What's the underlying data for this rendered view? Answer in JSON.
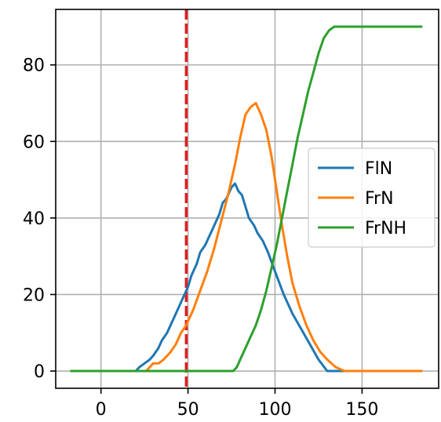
{
  "chart_data": {
    "type": "line",
    "title": "",
    "xlabel": "",
    "ylabel": "",
    "xlim": [
      -26,
      194
    ],
    "ylim": [
      -4.5,
      94.5
    ],
    "xticks": [
      0,
      50,
      100,
      150
    ],
    "yticks": [
      0,
      20,
      40,
      60,
      80
    ],
    "grid": true,
    "legend": {
      "placement": "center-right",
      "entries": [
        "FlN",
        "FrN",
        "FrNH"
      ]
    },
    "colors": {
      "FlN": "#1f77b4",
      "FrN": "#ff7f0e",
      "FrNH": "#2ca02c",
      "vline": "#e41a1c"
    },
    "vline": {
      "x": 49,
      "style": "dashed",
      "color": "#e41a1c"
    },
    "series": [
      {
        "name": "FlN",
        "x": [
          -17,
          20,
          22,
          25,
          28,
          30,
          33,
          35,
          38,
          40,
          43,
          45,
          48,
          50,
          52,
          55,
          57,
          60,
          62,
          65,
          68,
          70,
          72,
          75,
          77,
          79,
          81,
          83,
          85,
          88,
          90,
          93,
          96,
          100,
          105,
          110,
          115,
          120,
          125,
          130,
          140,
          184
        ],
        "y": [
          0,
          0,
          1,
          2,
          3,
          4,
          6,
          8,
          10,
          12,
          15,
          17,
          20,
          22,
          25,
          28,
          31,
          33,
          35,
          38,
          41,
          44,
          45,
          48,
          49,
          47,
          46,
          43,
          40,
          38,
          36,
          34,
          31,
          26,
          20,
          15,
          11,
          7,
          3,
          0,
          0,
          0
        ]
      },
      {
        "name": "FrN",
        "x": [
          -17,
          26,
          28,
          30,
          33,
          36,
          40,
          43,
          46,
          49,
          53,
          57,
          61,
          65,
          69,
          73,
          77,
          80,
          83,
          86,
          89,
          92,
          95,
          98,
          101,
          104,
          107,
          110,
          114,
          118,
          122,
          126,
          130,
          135,
          140,
          184
        ],
        "y": [
          0,
          0,
          1,
          2,
          2,
          3,
          5,
          7,
          10,
          12,
          16,
          21,
          26,
          32,
          39,
          46,
          54,
          61,
          67,
          69,
          70,
          67,
          63,
          56,
          47,
          38,
          30,
          23,
          17,
          12,
          8,
          5,
          3,
          1,
          0,
          0
        ]
      },
      {
        "name": "FrNH",
        "x": [
          -17,
          76,
          78,
          80,
          83,
          86,
          89,
          92,
          95,
          98,
          101,
          104,
          107,
          110,
          113,
          116,
          119,
          122,
          125,
          128,
          131,
          134,
          137,
          140,
          184
        ],
        "y": [
          0,
          0,
          1,
          3,
          6,
          9,
          12,
          16,
          21,
          27,
          33,
          40,
          47,
          54,
          61,
          67,
          73,
          78,
          83,
          87,
          89,
          90,
          90,
          90,
          90
        ]
      }
    ]
  }
}
